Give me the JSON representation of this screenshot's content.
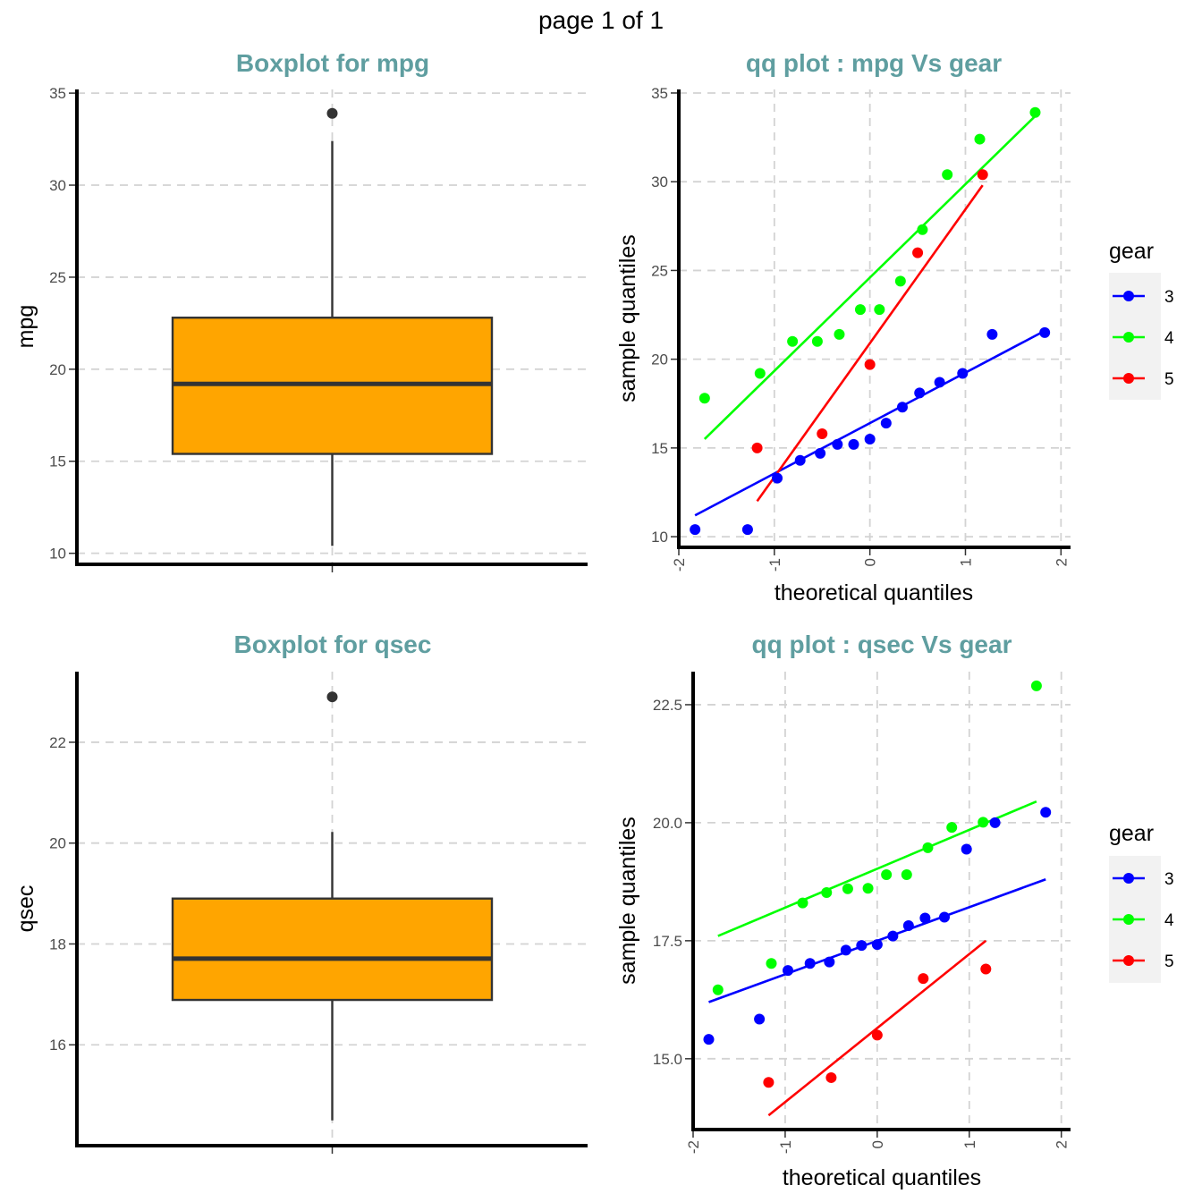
{
  "page": {
    "title": "page 1 of 1"
  },
  "colors": {
    "title": "#5F9EA0",
    "box_fill": "#FFA500",
    "gear_3": "#0000FF",
    "gear_4": "#00FF00",
    "gear_5": "#FF0000"
  },
  "chart_data": [
    {
      "type": "box",
      "title": "Boxplot for mpg",
      "xlabel": "",
      "ylabel": "mpg",
      "ylim": [
        9.4,
        35.2
      ],
      "yticks": [
        10,
        15,
        20,
        25,
        30,
        35
      ],
      "grid": true,
      "box": {
        "min": 10.4,
        "q1": 15.4,
        "median": 19.2,
        "q3": 22.8,
        "max": 32.4,
        "outliers": [
          33.9
        ]
      }
    },
    {
      "type": "scatter",
      "title": "qq plot : mpg Vs gear",
      "xlabel": "theoretical quantiles",
      "ylabel": "sample quantiles",
      "xlim": [
        -2,
        2.1
      ],
      "ylim": [
        9.4,
        35.2
      ],
      "xticks": [
        -2,
        -1,
        0,
        1,
        2
      ],
      "yticks": [
        10,
        15,
        20,
        25,
        30,
        35
      ],
      "grid": true,
      "legend": {
        "title": "gear",
        "position": "right"
      },
      "series": [
        {
          "name": "3",
          "color": "#0000FF",
          "x": [
            -1.83,
            -1.28,
            -0.97,
            -0.73,
            -0.52,
            -0.34,
            -0.17,
            0,
            0.17,
            0.34,
            0.52,
            0.73,
            0.97,
            1.28,
            1.83
          ],
          "y": [
            10.4,
            10.4,
            13.3,
            14.3,
            14.7,
            15.2,
            15.2,
            15.5,
            16.4,
            17.3,
            18.1,
            18.7,
            19.2,
            21.4,
            21.5
          ],
          "line": [
            [
              -1.83,
              11.2
            ],
            [
              1.83,
              21.6
            ]
          ]
        },
        {
          "name": "4",
          "color": "#00FF00",
          "x": [
            -1.73,
            -1.15,
            -0.81,
            -0.55,
            -0.32,
            -0.1,
            0.1,
            0.32,
            0.55,
            0.81,
            1.15,
            1.73
          ],
          "y": [
            17.8,
            19.2,
            21.0,
            21.0,
            21.4,
            22.8,
            22.8,
            24.4,
            27.3,
            30.4,
            32.4,
            33.9
          ],
          "line": [
            [
              -1.73,
              15.5
            ],
            [
              1.73,
              33.7
            ]
          ]
        },
        {
          "name": "5",
          "color": "#FF0000",
          "x": [
            -1.18,
            -0.5,
            0,
            0.5,
            1.18
          ],
          "y": [
            15.0,
            15.8,
            19.7,
            26.0,
            30.4
          ],
          "line": [
            [
              -1.18,
              12.0
            ],
            [
              1.18,
              29.8
            ]
          ]
        }
      ]
    },
    {
      "type": "box",
      "title": "Boxplot for qsec",
      "xlabel": "",
      "ylabel": "qsec",
      "ylim": [
        14.0,
        23.4
      ],
      "yticks": [
        16,
        18,
        20,
        22
      ],
      "grid": true,
      "box": {
        "min": 14.5,
        "q1": 16.89,
        "median": 17.71,
        "q3": 18.9,
        "max": 20.22,
        "outliers": [
          22.9
        ]
      }
    },
    {
      "type": "scatter",
      "title": "qq plot : qsec Vs gear",
      "xlabel": "theoretical quantiles",
      "ylabel": "sample quantiles",
      "xlim": [
        -2,
        2.1
      ],
      "ylim": [
        13.5,
        23.2
      ],
      "xticks": [
        -2,
        -1,
        0,
        1,
        2
      ],
      "yticks": [
        15.0,
        17.5,
        20.0,
        22.5
      ],
      "grid": true,
      "legend": {
        "title": "gear",
        "position": "right"
      },
      "series": [
        {
          "name": "3",
          "color": "#0000FF",
          "x": [
            -1.83,
            -1.28,
            -0.97,
            -0.73,
            -0.52,
            -0.34,
            -0.17,
            0,
            0.17,
            0.34,
            0.52,
            0.73,
            0.97,
            1.28,
            1.83
          ],
          "y": [
            15.41,
            15.84,
            16.87,
            17.02,
            17.05,
            17.3,
            17.4,
            17.42,
            17.6,
            17.82,
            17.98,
            18.0,
            19.44,
            20.0,
            20.22
          ],
          "line": [
            [
              -1.83,
              16.2
            ],
            [
              1.83,
              18.8
            ]
          ]
        },
        {
          "name": "4",
          "color": "#00FF00",
          "x": [
            -1.73,
            -1.15,
            -0.81,
            -0.55,
            -0.32,
            -0.1,
            0.1,
            0.32,
            0.55,
            0.81,
            1.15,
            1.73
          ],
          "y": [
            16.46,
            17.02,
            18.3,
            18.52,
            18.6,
            18.61,
            18.9,
            18.9,
            19.47,
            19.9,
            20.01,
            22.9
          ],
          "line": [
            [
              -1.73,
              17.6
            ],
            [
              1.73,
              20.45
            ]
          ]
        },
        {
          "name": "5",
          "color": "#FF0000",
          "x": [
            -1.18,
            -0.5,
            0,
            0.5,
            1.18
          ],
          "y": [
            14.5,
            14.6,
            15.5,
            16.7,
            16.9
          ],
          "line": [
            [
              -1.18,
              13.8
            ],
            [
              1.18,
              17.5
            ]
          ]
        }
      ]
    }
  ]
}
